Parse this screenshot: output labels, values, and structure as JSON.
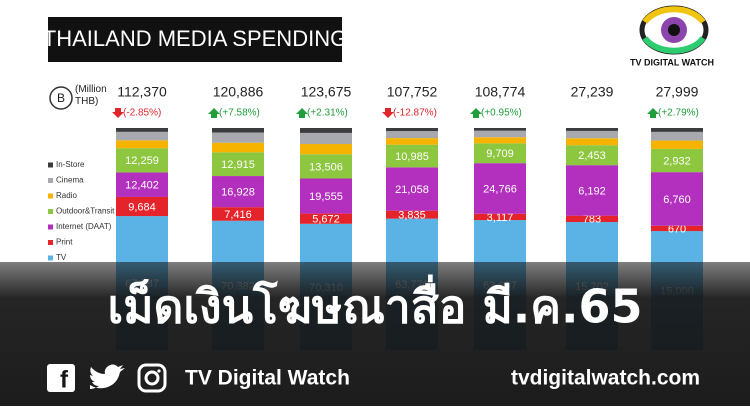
{
  "header": {
    "title": "THAILAND MEDIA SPENDING",
    "badge": "B",
    "unit": "(Million THB)"
  },
  "logo": {
    "name": "TV DIGITAL WATCH"
  },
  "overlay": {
    "headline": "เม็ดเงินโฆษณาสื่อ มี.ค.65"
  },
  "footer": {
    "brand": "TV Digital Watch",
    "website": "tvdigitalwatch.com"
  },
  "chart_data": {
    "type": "bar",
    "stacked": true,
    "normalized": true,
    "categories": [
      null,
      null,
      null,
      null,
      null,
      null,
      null
    ],
    "series": [
      {
        "name": "In-Store",
        "color": "#3b3b3d",
        "values": [
          1938,
          2445,
          2732,
          1504,
          1325,
          359,
          487
        ]
      },
      {
        "name": "Cinema",
        "color": "#a8a9ae",
        "values": [
          4300,
          5600,
          6200,
          3400,
          3200,
          900,
          1100
        ]
      },
      {
        "name": "Radio",
        "color": "#f6b400",
        "values": [
          4000,
          5200,
          5700,
          3200,
          3000,
          850,
          1050
        ]
      },
      {
        "name": "Outdoor&Transit",
        "color": "#8dc63f",
        "values": [
          12259,
          12915,
          13506,
          10985,
          9709,
          2453,
          2932
        ],
        "value_labels": [
          "12,259",
          "12,915",
          "13,506",
          "10,985",
          "9,709",
          "2,453",
          "2,932"
        ]
      },
      {
        "name": "Internet (DAAT)",
        "color": "#b32fbd",
        "values": [
          12402,
          16928,
          19555,
          21058,
          24766,
          6192,
          6760
        ],
        "value_labels": [
          "12,402",
          "16,928",
          "19,555",
          "21,058",
          "24,766",
          "6,192",
          "6,760"
        ]
      },
      {
        "name": "Print",
        "color": "#e5232b",
        "values": [
          9684,
          7416,
          5672,
          3835,
          3117,
          783,
          670
        ],
        "value_labels": [
          "9,684",
          "7,416",
          "5,672",
          "3,835",
          "3,117",
          "783",
          "670"
        ]
      },
      {
        "name": "TV",
        "color": "#5ab3e4",
        "values": [
          67787,
          70382,
          70310,
          63770,
          63657,
          15702,
          15000
        ],
        "value_labels": [
          "67,787",
          "70,382",
          "70,310",
          "63,770",
          "63,657",
          "15,702",
          "15,000"
        ]
      }
    ],
    "totals": {
      "values": [
        112370,
        120886,
        123675,
        107752,
        108774,
        27239,
        27999
      ],
      "value_labels": [
        "112,370",
        "120,886",
        "123,675",
        "107,752",
        "108,774",
        "27,239",
        "27,999"
      ]
    },
    "changes": {
      "values": [
        -2.85,
        7.58,
        2.31,
        -12.87,
        0.95,
        null,
        2.79
      ],
      "value_labels": [
        "(-2.85%)",
        "(+7.58%)",
        "(+2.31%)",
        "(-12.87%)",
        "(+0.95%)",
        null,
        "(+2.79%)"
      ]
    },
    "legend": "left"
  }
}
